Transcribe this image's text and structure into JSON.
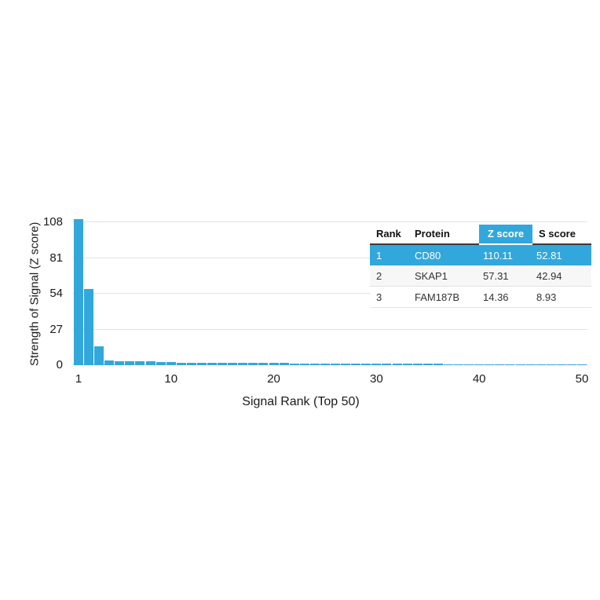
{
  "chart_data": {
    "type": "bar",
    "title": "",
    "xlabel": "Signal Rank (Top 50)",
    "ylabel": "Strength of Signal (Z score)",
    "ylim": [
      0,
      108
    ],
    "yticks": [
      0,
      27,
      54,
      81,
      108
    ],
    "xticks": [
      1,
      10,
      20,
      30,
      40,
      50
    ],
    "x_range": [
      1,
      50
    ],
    "grid": true,
    "legend": false,
    "bar_color": "#32A7DC",
    "values": [
      110.11,
      57.31,
      14.36,
      3.4,
      3.2,
      3.1,
      3.0,
      2.9,
      2.2,
      2.1,
      2.0,
      1.9,
      1.9,
      1.8,
      1.8,
      1.7,
      1.7,
      1.6,
      1.6,
      1.5,
      1.5,
      1.4,
      1.4,
      1.4,
      1.3,
      1.3,
      1.3,
      1.2,
      1.2,
      1.2,
      1.1,
      1.1,
      1.0,
      1.0,
      1.0,
      0.9,
      0.8,
      0.8,
      0.8,
      0.8,
      0.7,
      0.7,
      0.7,
      0.7,
      0.7,
      0.7,
      0.7,
      0.7,
      0.7,
      0.7
    ]
  },
  "table": {
    "headers": [
      "Rank",
      "Protein",
      "Z score",
      "S score"
    ],
    "rows": [
      [
        "1",
        "CD80",
        "110.11",
        "52.81"
      ],
      [
        "2",
        "SKAP1",
        "57.31",
        "42.94"
      ],
      [
        "3",
        "FAM187B",
        "14.36",
        "8.93"
      ]
    ],
    "highlighted_row_index": 0,
    "highlighted_column": "Z score",
    "highlight_color": "#32A7DC"
  }
}
